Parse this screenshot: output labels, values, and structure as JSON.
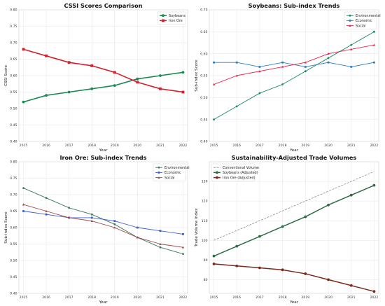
{
  "chart_data": [
    {
      "type": "line",
      "title": "CSSI Scores Comparison",
      "xlabel": "Year",
      "ylabel": "CSSI Score",
      "x": [
        2015,
        2016,
        2017,
        2018,
        2019,
        2020,
        2021,
        2022
      ],
      "xlim": [
        2014.8,
        2022.2
      ],
      "ylim": [
        0.4,
        0.8
      ],
      "yticks": [
        0.4,
        0.45,
        0.5,
        0.55,
        0.6,
        0.65,
        0.7,
        0.75,
        0.8
      ],
      "grid": true,
      "legend": "upper-right",
      "series": [
        {
          "name": "Soybeans",
          "values": [
            0.52,
            0.54,
            0.55,
            0.56,
            0.57,
            0.59,
            0.6,
            0.61
          ],
          "color": "#1a8a4e",
          "marker": "circle",
          "width": 1.6
        },
        {
          "name": "Iron Ore",
          "values": [
            0.68,
            0.66,
            0.64,
            0.63,
            0.61,
            0.58,
            0.56,
            0.55
          ],
          "color": "#d4202c",
          "marker": "square",
          "width": 1.6
        }
      ]
    },
    {
      "type": "line",
      "title": "Soybeans: Sub-index Trends",
      "xlabel": "Year",
      "ylabel": "Sub-index Score",
      "x": [
        2015,
        2016,
        2017,
        2018,
        2019,
        2020,
        2021,
        2022
      ],
      "xlim": [
        2014.8,
        2022.2
      ],
      "ylim": [
        0.4,
        0.7
      ],
      "yticks": [
        0.4,
        0.45,
        0.5,
        0.55,
        0.6,
        0.65,
        0.7
      ],
      "grid": true,
      "legend": "upper-right",
      "series": [
        {
          "name": "Environmental",
          "values": [
            0.45,
            0.48,
            0.51,
            0.53,
            0.56,
            0.59,
            0.62,
            0.65
          ],
          "color": "#1a8a62",
          "marker": "circle",
          "width": 0.9
        },
        {
          "name": "Economic",
          "values": [
            0.58,
            0.58,
            0.57,
            0.58,
            0.57,
            0.58,
            0.57,
            0.58
          ],
          "color": "#2f7fc1",
          "marker": "square",
          "width": 0.9
        },
        {
          "name": "Social",
          "values": [
            0.53,
            0.55,
            0.56,
            0.57,
            0.58,
            0.6,
            0.61,
            0.62
          ],
          "color": "#e8224a",
          "marker": "triangle",
          "width": 0.9
        }
      ]
    },
    {
      "type": "line",
      "title": "Iron Ore: Sub-index Trends",
      "xlabel": "Year",
      "ylabel": "Sub-index Score",
      "x": [
        2015,
        2016,
        2017,
        2018,
        2019,
        2020,
        2021,
        2022
      ],
      "xlim": [
        2014.8,
        2022.2
      ],
      "ylim": [
        0.4,
        0.8
      ],
      "yticks": [
        0.4,
        0.45,
        0.5,
        0.55,
        0.6,
        0.65,
        0.7,
        0.75,
        0.8
      ],
      "grid": true,
      "legend": "upper-right",
      "series": [
        {
          "name": "Environmental",
          "values": [
            0.72,
            0.69,
            0.66,
            0.64,
            0.61,
            0.57,
            0.54,
            0.52
          ],
          "color": "#3d7a5a",
          "marker": "circle",
          "width": 0.9
        },
        {
          "name": "Economic",
          "values": [
            0.65,
            0.64,
            0.63,
            0.63,
            0.62,
            0.6,
            0.59,
            0.58
          ],
          "color": "#3a5fcd",
          "marker": "square",
          "width": 0.9
        },
        {
          "name": "Social",
          "values": [
            0.67,
            0.65,
            0.63,
            0.62,
            0.6,
            0.57,
            0.55,
            0.54
          ],
          "color": "#9c4a4a",
          "marker": "triangle",
          "width": 0.9
        }
      ]
    },
    {
      "type": "line",
      "title": "Sustainability-Adjusted Trade Volumes",
      "xlabel": "Year",
      "ylabel": "Trade Volume Index",
      "x": [
        2015,
        2016,
        2017,
        2018,
        2019,
        2020,
        2021,
        2022
      ],
      "xlim": [
        2014.8,
        2022.2
      ],
      "ylim": [
        73,
        140
      ],
      "yticks": [
        80,
        90,
        100,
        110,
        120,
        130
      ],
      "grid": true,
      "legend": "upper-left",
      "series": [
        {
          "name": "Conventional Volume",
          "values": [
            100,
            105,
            110,
            115,
            120,
            125,
            130,
            135
          ],
          "color": "#8c8c8c",
          "marker": "none",
          "dashed": true,
          "width": 0.8
        },
        {
          "name": "Soybeans (Adjusted)",
          "values": [
            92,
            97,
            102,
            107,
            112,
            118,
            123,
            128
          ],
          "color": "#2e6b45",
          "marker": "circle",
          "width": 1.5
        },
        {
          "name": "Iron Ore (Adjusted)",
          "values": [
            88,
            87,
            86,
            85,
            83,
            80,
            77,
            74
          ],
          "color": "#7a2a1c",
          "marker": "circle",
          "width": 1.5
        }
      ]
    }
  ]
}
